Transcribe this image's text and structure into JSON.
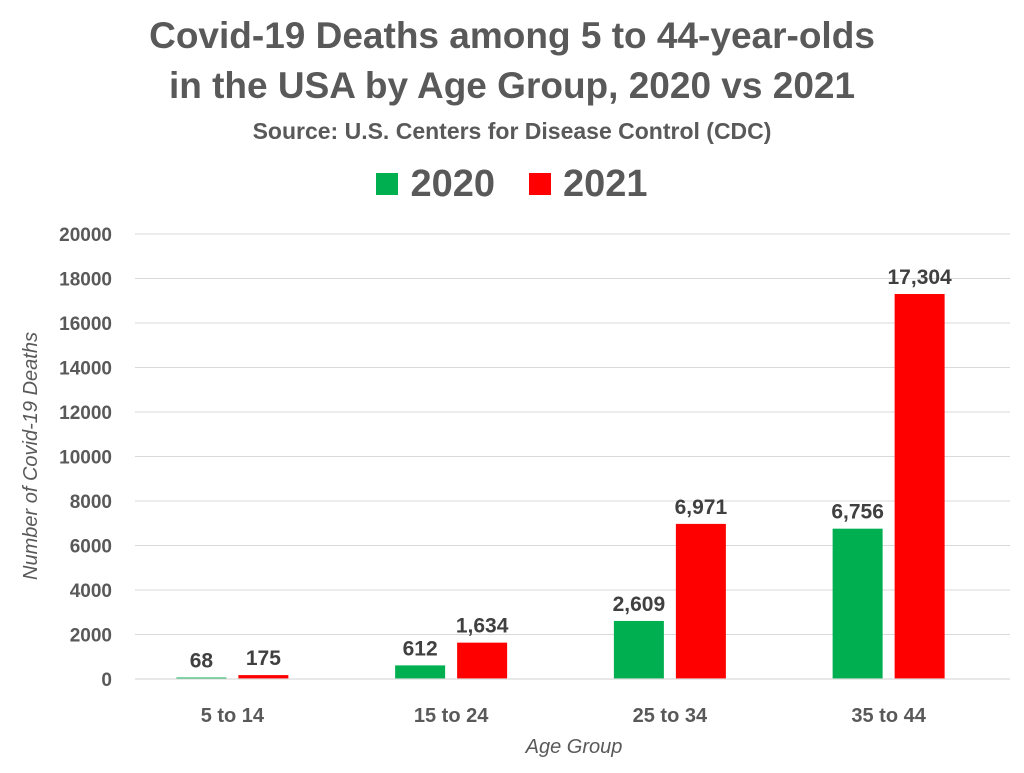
{
  "chart_data": {
    "type": "bar",
    "title": "Covid-19 Deaths among 5 to 44-year-olds",
    "title_line2": "in the USA by Age Group, 2020 vs 2021",
    "subtitle": "Source: U.S. Centers for Disease Control (CDC)",
    "xlabel": "Age Group",
    "ylabel": "Number of Covid-19 Deaths",
    "categories": [
      "5 to 14",
      "15 to 24",
      "25 to 34",
      "35 to 44"
    ],
    "series": [
      {
        "name": "2020",
        "color": "#00B050",
        "values": [
          68,
          612,
          2609,
          6756
        ],
        "labels": [
          "68",
          "612",
          "2,609",
          "6,756"
        ]
      },
      {
        "name": "2021",
        "color": "#FF0000",
        "values": [
          175,
          1634,
          6971,
          17304
        ],
        "labels": [
          "175",
          "1,634",
          "6,971",
          "17,304"
        ]
      }
    ],
    "ylim": [
      0,
      20000
    ],
    "yticks": [
      0,
      2000,
      4000,
      6000,
      8000,
      10000,
      12000,
      14000,
      16000,
      18000,
      20000
    ],
    "grid": true,
    "legend_position": "top-center"
  }
}
